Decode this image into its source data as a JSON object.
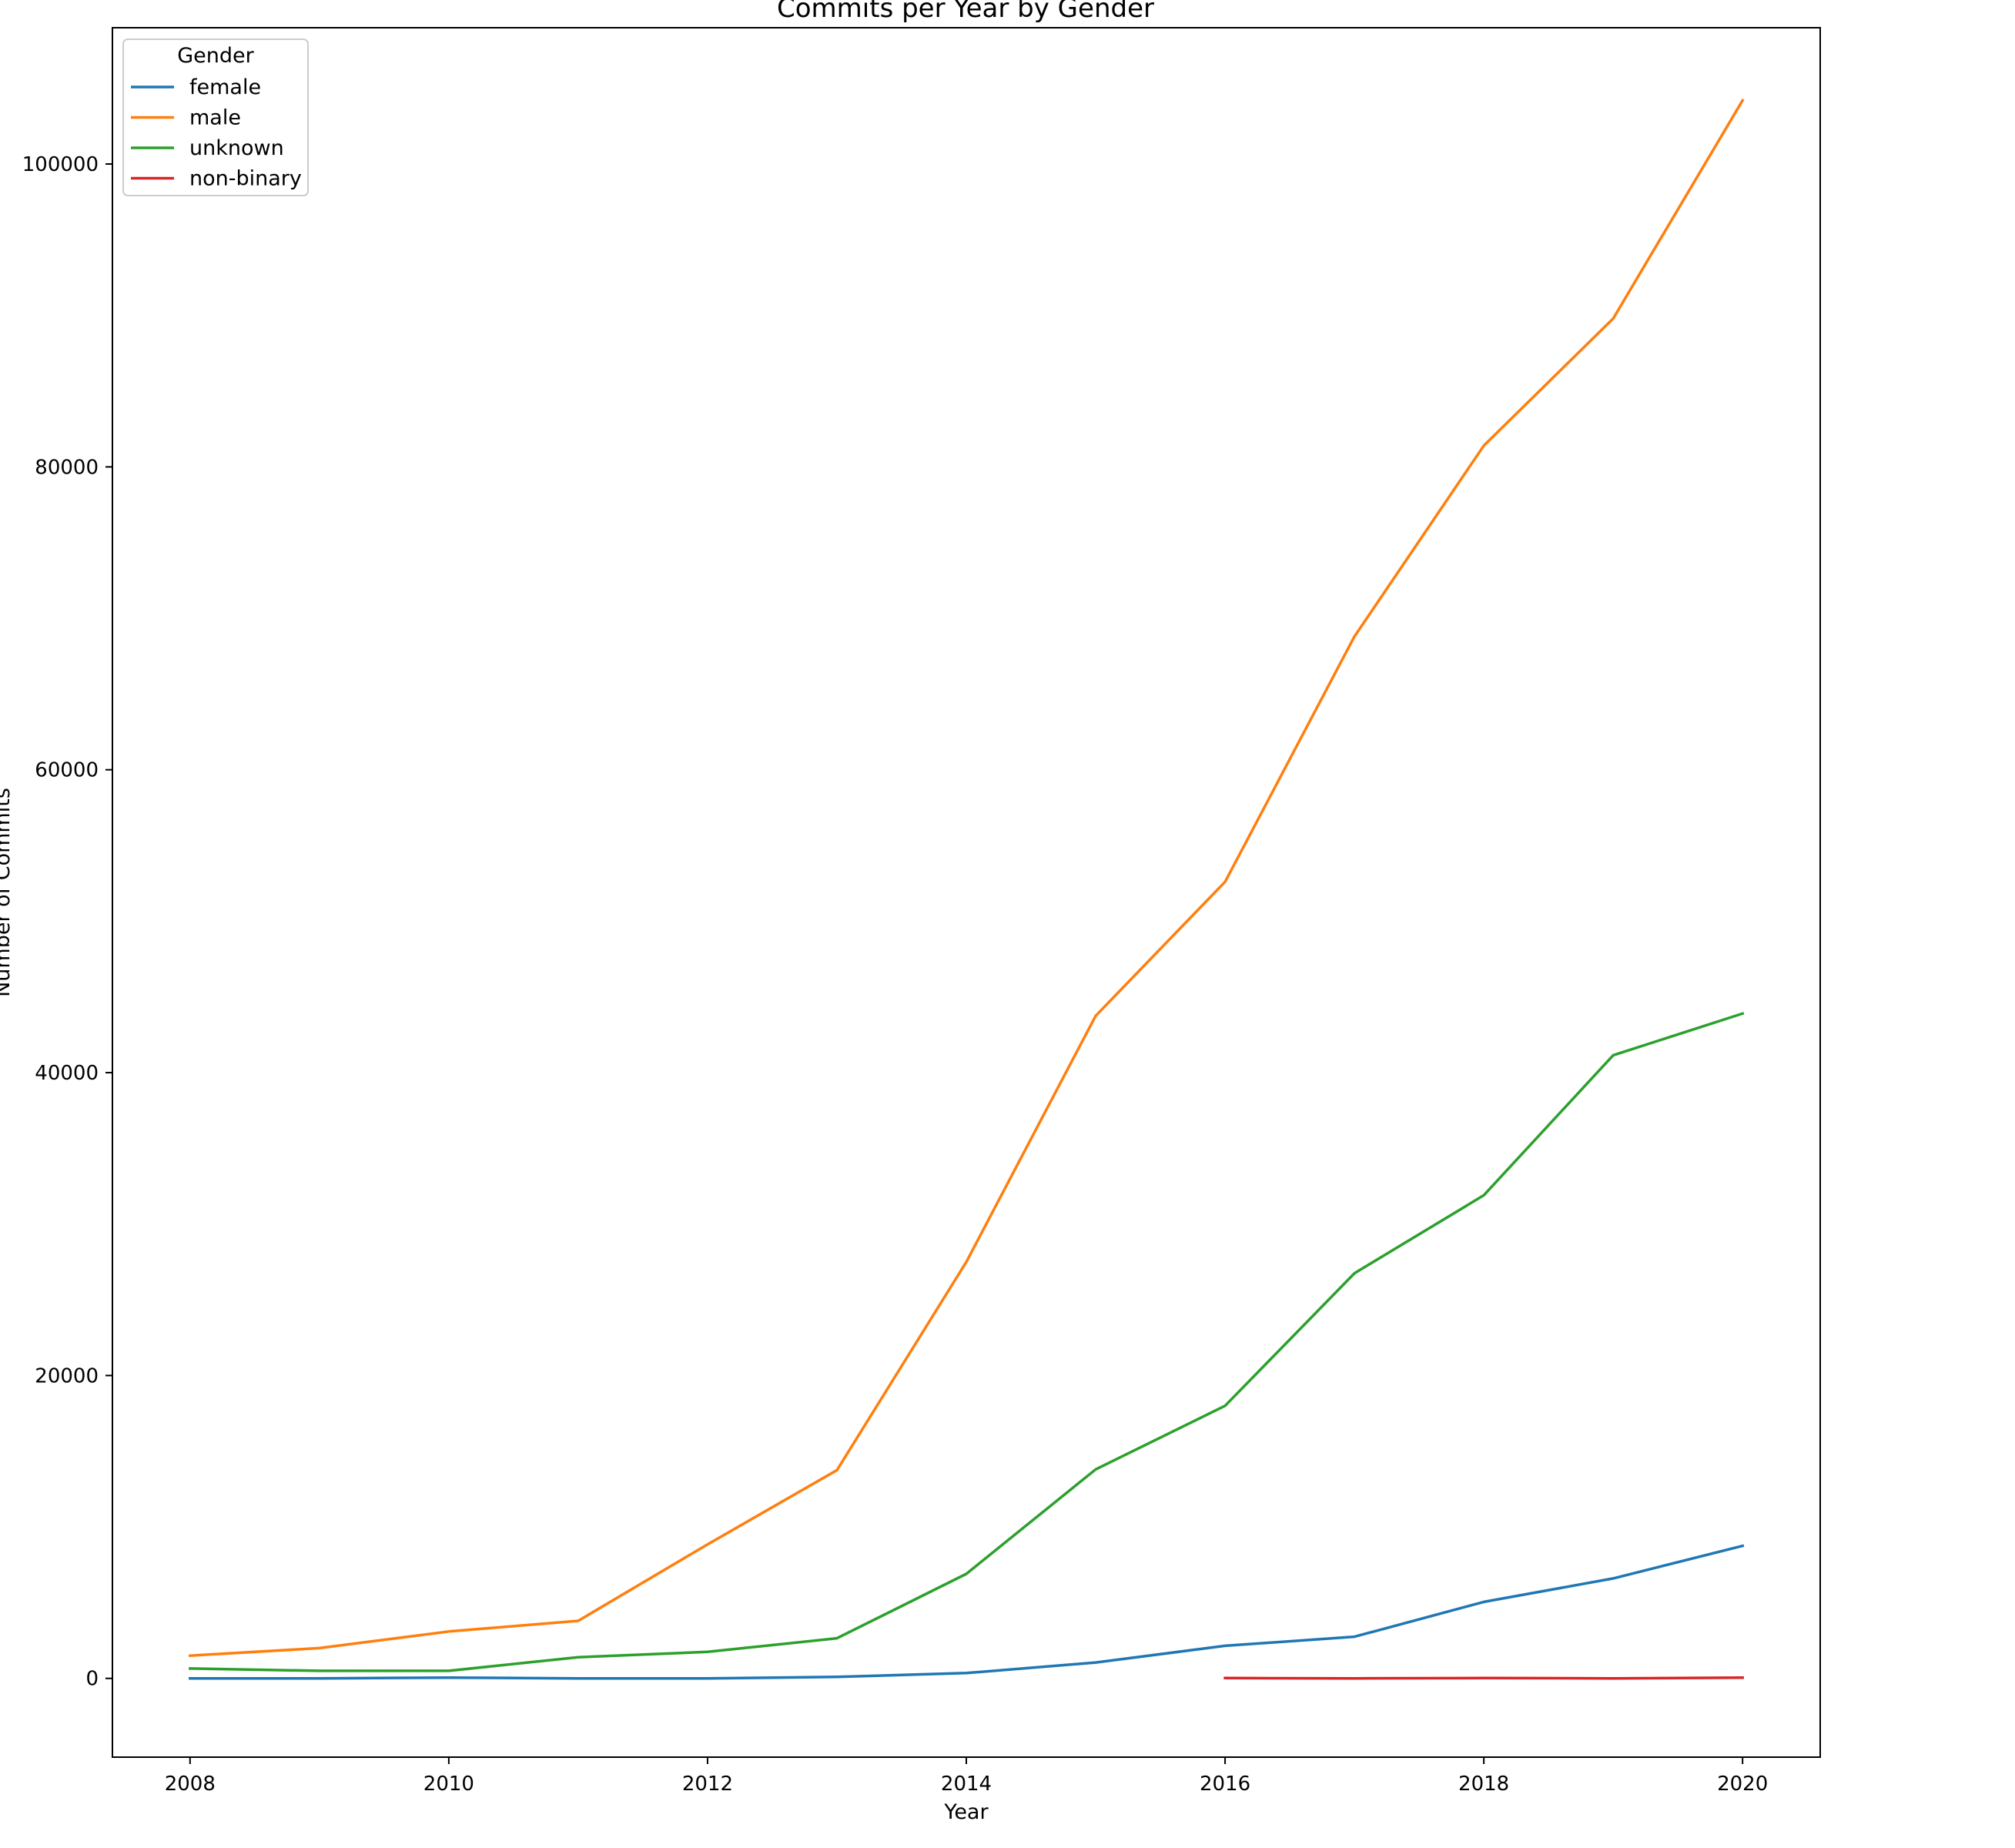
{
  "chart_data": {
    "type": "line",
    "title": "Commits per Year by Gender",
    "xlabel": "Year",
    "ylabel": "Number of Commits",
    "xlim": [
      2007.4,
      2020.6
    ],
    "ylim": [
      -5200,
      109000
    ],
    "xticks": [
      2008,
      2010,
      2012,
      2014,
      2016,
      2018,
      2020
    ],
    "xtick_labels": [
      "2008",
      "2010",
      "2012",
      "2014",
      "2016",
      "2018",
      "2020"
    ],
    "yticks": [
      0,
      20000,
      40000,
      60000,
      80000,
      100000
    ],
    "ytick_labels": [
      "0",
      "20000",
      "40000",
      "60000",
      "80000",
      "100000"
    ],
    "grid": false,
    "legend": {
      "title": "Gender",
      "placement": "top-left",
      "entries": [
        "female",
        "male",
        "unknown",
        "non-binary"
      ]
    },
    "series": [
      {
        "name": "female",
        "color": "#1f77b4",
        "x": [
          2008,
          2009,
          2010,
          2011,
          2012,
          2013,
          2014,
          2015,
          2016,
          2017,
          2018,
          2019,
          2020
        ],
        "y": [
          0,
          0,
          50,
          0,
          0,
          100,
          350,
          1050,
          2150,
          2750,
          5050,
          6600,
          8750
        ]
      },
      {
        "name": "male",
        "color": "#ff7f0e",
        "x": [
          2008,
          2009,
          2010,
          2011,
          2012,
          2013,
          2014,
          2015,
          2016,
          2017,
          2018,
          2019,
          2020
        ],
        "y": [
          1500,
          2000,
          3100,
          3800,
          8850,
          13750,
          27500,
          43750,
          52600,
          68800,
          81400,
          89800,
          104200
        ]
      },
      {
        "name": "unknown",
        "color": "#2ca02c",
        "x": [
          2008,
          2009,
          2010,
          2011,
          2012,
          2013,
          2014,
          2015,
          2016,
          2017,
          2018,
          2019,
          2020
        ],
        "y": [
          650,
          500,
          500,
          1400,
          1750,
          2650,
          6900,
          13800,
          18000,
          26750,
          31900,
          41150,
          43900
        ]
      },
      {
        "name": "non-binary",
        "color": "#d62728",
        "x": [
          2016,
          2017,
          2018,
          2019,
          2020
        ],
        "y": [
          20,
          0,
          20,
          0,
          50
        ]
      }
    ]
  }
}
